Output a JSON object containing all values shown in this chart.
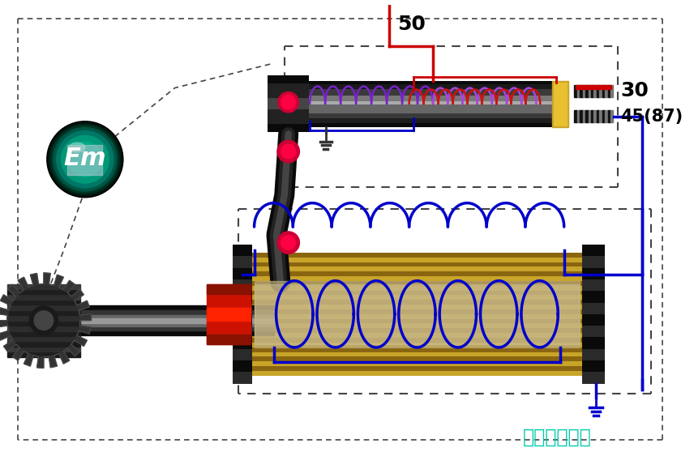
{
  "bg": "#ffffff",
  "label_50": "50",
  "label_30": "30",
  "label_45": "45(87)",
  "watermark": "彩虹网址导航",
  "c_purple": "#7722cc",
  "c_red_coil": "#cc1111",
  "c_blue": "#0000cc",
  "c_red_wire": "#cc0000",
  "c_gold": "#c8a428",
  "c_dark": "#1a1a1a",
  "c_mid": "#555555",
  "c_light": "#999999",
  "c_teal_dark": "#004433",
  "c_teal": "#007766",
  "c_teal_bright": "#009988",
  "c_watermark": "#00ccaa",
  "c_black": "#000000",
  "c_dashed": "#444444",
  "c_red_bright": "#ff0044",
  "c_ground_dark": "#333333"
}
